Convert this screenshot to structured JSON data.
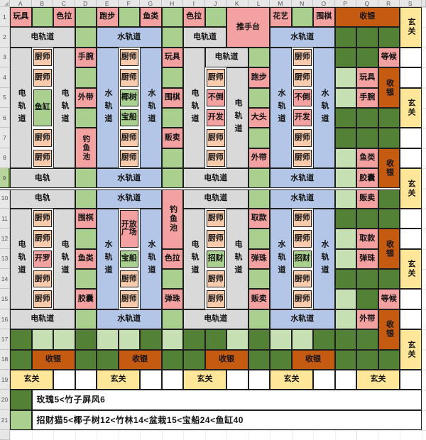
{
  "sheet": {
    "columns": [
      "A",
      "B",
      "C",
      "D",
      "E",
      "F",
      "G",
      "H",
      "I",
      "J",
      "K",
      "L",
      "M",
      "N",
      "O",
      "P",
      "Q",
      "R",
      "S"
    ],
    "rows": [
      1,
      2,
      3,
      4,
      5,
      6,
      7,
      8,
      9,
      10,
      11,
      12,
      13,
      14,
      15,
      16,
      17,
      18,
      19,
      20,
      21
    ],
    "selected_row": 9,
    "thick_divider_after_row": 9
  },
  "palette": {
    "pink": "#F4A2A1",
    "peach": "#F8CBAD",
    "green": "#A9D08E",
    "lightgreen": "#C6E0B4",
    "dark": "#538135",
    "gray": "#D9D9D9",
    "blue": "#B4C6E7",
    "orange": "#C55A11",
    "yellow": "#FFE699",
    "white": "#FFFFFF",
    "note": "#FFFFFF",
    "header_bg": "#E7E7E7",
    "selected_header_bg": "#B7D49C",
    "border": "#1F1F1F"
  },
  "notes": {
    "row20": "玫瑰5<竹子屏风6",
    "row21": "招财猫5<椰子树12<竹林14<盆栽15<宝船24<鱼缸40"
  },
  "cells": [
    {
      "a": "A1",
      "t": "玩具",
      "f": "pink"
    },
    {
      "a": "A2",
      "cs": 3,
      "t": "电轨道",
      "f": "gray"
    },
    {
      "a": "A3",
      "rs": 6,
      "t": "电轨道",
      "f": "gray",
      "o": "v"
    },
    {
      "a": "A9",
      "cs": 3,
      "t": "电轨",
      "f": "gray"
    },
    {
      "a": "A10",
      "cs": 3,
      "t": "电轨",
      "f": "gray"
    },
    {
      "a": "A11",
      "rs": 5,
      "t": "电轨道",
      "f": "gray",
      "o": "v"
    },
    {
      "a": "A16",
      "cs": 3,
      "t": "电轨道",
      "f": "gray"
    },
    {
      "a": "A17",
      "f": "dark"
    },
    {
      "a": "A18",
      "f": "dark"
    },
    {
      "a": "A19",
      "cs": 2,
      "t": "玄关",
      "f": "yellow"
    },
    {
      "a": "A20",
      "f": "dark"
    },
    {
      "a": "A21",
      "f": "green"
    },
    {
      "a": "B1",
      "f": "green"
    },
    {
      "a": "B3",
      "t": "厨师",
      "f": "peach",
      "k": "box"
    },
    {
      "a": "B4",
      "t": "厨师",
      "f": "peach",
      "k": "box"
    },
    {
      "a": "B5",
      "rs": 2,
      "t": "鱼缸",
      "f": "green",
      "k": "box"
    },
    {
      "a": "B7",
      "t": "厨师",
      "f": "peach",
      "k": "box"
    },
    {
      "a": "B8",
      "t": "厨师",
      "f": "peach",
      "k": "box"
    },
    {
      "a": "B11",
      "t": "厨师",
      "f": "peach",
      "k": "box"
    },
    {
      "a": "B12",
      "t": "厨师",
      "f": "peach",
      "k": "box"
    },
    {
      "a": "B13",
      "t": "开罗",
      "f": "pink",
      "k": "box"
    },
    {
      "a": "B14",
      "t": "厨师",
      "f": "peach",
      "k": "box"
    },
    {
      "a": "B15",
      "t": "厨师",
      "f": "peach",
      "k": "box"
    },
    {
      "a": "B17",
      "f": "lightgreen"
    },
    {
      "a": "B18",
      "cs": 2,
      "t": "收银",
      "f": "orange"
    },
    {
      "a": "B20",
      "cs": 18,
      "t": "玫瑰5<竹子屏风6",
      "f": "note"
    },
    {
      "a": "B21",
      "cs": 18,
      "t": "招财猫5<椰子树12<竹林14<盆栽15<宝船24<鱼缸40",
      "f": "note"
    },
    {
      "a": "C1",
      "t": "色拉",
      "f": "pink"
    },
    {
      "a": "C3",
      "rs": 6,
      "t": "电轨道",
      "f": "gray",
      "o": "v"
    },
    {
      "a": "C11",
      "rs": 5,
      "t": "电轨道",
      "f": "gray",
      "o": "v"
    },
    {
      "a": "C17",
      "f": "lightgreen"
    },
    {
      "a": "C19",
      "f": "white"
    },
    {
      "a": "D1",
      "f": "green"
    },
    {
      "a": "D2",
      "f": "green"
    },
    {
      "a": "D3",
      "t": "手腕",
      "f": "pink"
    },
    {
      "a": "D4",
      "f": "green"
    },
    {
      "a": "D5",
      "t": "外带",
      "f": "pink"
    },
    {
      "a": "D6",
      "f": "green"
    },
    {
      "a": "D7",
      "rs": 2,
      "t": "钓鱼池",
      "f": "pink",
      "o": "v"
    },
    {
      "a": "D9",
      "f": "green"
    },
    {
      "a": "D10",
      "f": "green"
    },
    {
      "a": "D11",
      "t": "围棋",
      "f": "pink"
    },
    {
      "a": "D12",
      "f": "green"
    },
    {
      "a": "D13",
      "t": "鱼类",
      "f": "pink"
    },
    {
      "a": "D14",
      "f": "green"
    },
    {
      "a": "D15",
      "t": "胶囊",
      "f": "pink"
    },
    {
      "a": "D16",
      "f": "green"
    },
    {
      "a": "D17",
      "f": "dark"
    },
    {
      "a": "D18",
      "f": "dark"
    },
    {
      "a": "D19",
      "f": "white"
    },
    {
      "a": "E1",
      "t": "跑步",
      "f": "pink"
    },
    {
      "a": "E2",
      "cs": 3,
      "t": "水轨道",
      "f": "blue"
    },
    {
      "a": "E3",
      "rs": 6,
      "t": "水轨道",
      "f": "blue",
      "o": "v"
    },
    {
      "a": "E9",
      "cs": 3,
      "t": "水轨道",
      "f": "blue"
    },
    {
      "a": "E10",
      "cs": 3,
      "t": "水轨道",
      "f": "blue"
    },
    {
      "a": "E11",
      "rs": 5,
      "t": "水轨道",
      "f": "blue",
      "o": "v"
    },
    {
      "a": "E16",
      "cs": 3,
      "t": "水轨道",
      "f": "blue"
    },
    {
      "a": "E17",
      "f": "lightgreen"
    },
    {
      "a": "E18",
      "f": "dark"
    },
    {
      "a": "E19",
      "cs": 2,
      "t": "玄关",
      "f": "yellow"
    },
    {
      "a": "F1",
      "f": "green"
    },
    {
      "a": "F3",
      "t": "厨师",
      "f": "peach",
      "k": "box"
    },
    {
      "a": "F4",
      "t": "厨师",
      "f": "peach",
      "k": "box"
    },
    {
      "a": "F5",
      "t": "椰树",
      "f": "green",
      "k": "box"
    },
    {
      "a": "F6",
      "t": "宝船",
      "f": "green",
      "k": "box"
    },
    {
      "a": "F7",
      "t": "厨师",
      "f": "peach",
      "k": "box"
    },
    {
      "a": "F8",
      "t": "厨师",
      "f": "peach",
      "k": "box"
    },
    {
      "a": "F11",
      "rs": 2,
      "t": "开放广场",
      "f": "pink",
      "k": "box",
      "o": "w"
    },
    {
      "a": "F13",
      "t": "宝船",
      "f": "green",
      "k": "box"
    },
    {
      "a": "F14",
      "t": "厨师",
      "f": "peach",
      "k": "box"
    },
    {
      "a": "F15",
      "t": "厨师",
      "f": "peach",
      "k": "box"
    },
    {
      "a": "F17",
      "f": "lightgreen"
    },
    {
      "a": "F18",
      "cs": 2,
      "t": "收银",
      "f": "orange"
    },
    {
      "a": "G1",
      "t": "鱼类",
      "f": "pink"
    },
    {
      "a": "G3",
      "rs": 6,
      "t": "水轨道",
      "f": "blue",
      "o": "v"
    },
    {
      "a": "G11",
      "rs": 5,
      "t": "水轨道",
      "f": "blue",
      "o": "v"
    },
    {
      "a": "G17",
      "f": "dark"
    },
    {
      "a": "G19",
      "f": "white"
    },
    {
      "a": "H1",
      "f": "green"
    },
    {
      "a": "H2",
      "f": "green"
    },
    {
      "a": "H3",
      "t": "玩具",
      "f": "pink"
    },
    {
      "a": "H4",
      "f": "green"
    },
    {
      "a": "H5",
      "t": "围棋",
      "f": "pink"
    },
    {
      "a": "H6",
      "f": "green"
    },
    {
      "a": "H7",
      "t": "贩卖",
      "f": "pink"
    },
    {
      "a": "H8",
      "f": "green"
    },
    {
      "a": "H9",
      "f": "green"
    },
    {
      "a": "H10",
      "rs": 3,
      "t": "钓鱼池",
      "f": "pink",
      "o": "v"
    },
    {
      "a": "H13",
      "t": "色拉",
      "f": "pink"
    },
    {
      "a": "H14",
      "f": "green"
    },
    {
      "a": "H15",
      "t": "弹珠",
      "f": "pink"
    },
    {
      "a": "H16",
      "f": "green"
    },
    {
      "a": "H17",
      "f": "lightgreen"
    },
    {
      "a": "H18",
      "f": "dark"
    },
    {
      "a": "H19",
      "f": "white"
    },
    {
      "a": "I1",
      "t": "色拉",
      "f": "pink"
    },
    {
      "a": "I2",
      "cs": 2,
      "t": "电轨道",
      "f": "gray"
    },
    {
      "a": "I3",
      "rs": 6,
      "t": "电轨道",
      "f": "gray",
      "o": "v"
    },
    {
      "a": "I9",
      "cs": 3,
      "t": "电轨道",
      "f": "gray"
    },
    {
      "a": "I10",
      "cs": 3,
      "t": "电轨道",
      "f": "gray"
    },
    {
      "a": "I11",
      "rs": 5,
      "t": "电轨道",
      "f": "gray",
      "o": "v"
    },
    {
      "a": "I16",
      "cs": 3,
      "t": "电轨道",
      "f": "gray"
    },
    {
      "a": "I17",
      "f": "dark"
    },
    {
      "a": "I18",
      "f": "dark"
    },
    {
      "a": "I19",
      "cs": 2,
      "t": "玄关",
      "f": "yellow"
    },
    {
      "a": "J1",
      "f": "green"
    },
    {
      "a": "J3",
      "cs": 2,
      "t": "电轨道",
      "f": "gray"
    },
    {
      "a": "J4",
      "t": "厨师",
      "f": "peach",
      "k": "box"
    },
    {
      "a": "J5",
      "t": "不倒",
      "f": "pink",
      "k": "box"
    },
    {
      "a": "J6",
      "t": "开发",
      "f": "pink",
      "k": "box"
    },
    {
      "a": "J7",
      "t": "厨师",
      "f": "peach",
      "k": "box"
    },
    {
      "a": "J8",
      "t": "厨师",
      "f": "peach",
      "k": "box"
    },
    {
      "a": "J11",
      "t": "厨师",
      "f": "peach",
      "k": "box"
    },
    {
      "a": "J12",
      "t": "厨师",
      "f": "peach",
      "k": "box"
    },
    {
      "a": "J13",
      "t": "招财",
      "f": "green",
      "k": "box"
    },
    {
      "a": "J14",
      "t": "厨师",
      "f": "peach",
      "k": "box"
    },
    {
      "a": "J15",
      "t": "厨师",
      "f": "peach",
      "k": "box"
    },
    {
      "a": "J17",
      "f": "dark"
    },
    {
      "a": "J18",
      "cs": 2,
      "t": "收银",
      "f": "orange"
    },
    {
      "a": "K1",
      "cs": 2,
      "rs": 2,
      "t": "推手台",
      "f": "pink"
    },
    {
      "a": "K4",
      "rs": 5,
      "t": "电轨道",
      "f": "gray",
      "o": "v"
    },
    {
      "a": "K11",
      "rs": 5,
      "t": "电轨道",
      "f": "gray",
      "o": "v"
    },
    {
      "a": "K17",
      "f": "lightgreen"
    },
    {
      "a": "K19",
      "f": "white"
    },
    {
      "a": "L3",
      "f": "green"
    },
    {
      "a": "L4",
      "t": "跑步",
      "f": "pink"
    },
    {
      "a": "L5",
      "f": "green"
    },
    {
      "a": "L6",
      "t": "大头",
      "f": "pink"
    },
    {
      "a": "L7",
      "f": "green"
    },
    {
      "a": "L8",
      "t": "外带",
      "f": "pink"
    },
    {
      "a": "L9",
      "f": "green"
    },
    {
      "a": "L10",
      "f": "green"
    },
    {
      "a": "L11",
      "t": "取款",
      "f": "pink"
    },
    {
      "a": "L12",
      "f": "green"
    },
    {
      "a": "L13",
      "t": "弹珠",
      "f": "pink"
    },
    {
      "a": "L14",
      "f": "green"
    },
    {
      "a": "L15",
      "t": "贩卖",
      "f": "pink"
    },
    {
      "a": "L16",
      "f": "green"
    },
    {
      "a": "L17",
      "f": "dark"
    },
    {
      "a": "L18",
      "f": "dark"
    },
    {
      "a": "L19",
      "f": "white"
    },
    {
      "a": "M1",
      "t": "花艺",
      "f": "pink"
    },
    {
      "a": "M2",
      "cs": 3,
      "t": "水轨道",
      "f": "blue"
    },
    {
      "a": "M3",
      "rs": 6,
      "t": "水轨道",
      "f": "blue",
      "o": "v"
    },
    {
      "a": "M9",
      "cs": 3,
      "t": "水轨道",
      "f": "blue"
    },
    {
      "a": "M10",
      "cs": 3,
      "t": "水轨道",
      "f": "blue"
    },
    {
      "a": "M11",
      "rs": 5,
      "t": "水轨道",
      "f": "blue",
      "o": "v"
    },
    {
      "a": "M16",
      "cs": 3,
      "t": "水轨道",
      "f": "blue"
    },
    {
      "a": "M17",
      "f": "lightgreen"
    },
    {
      "a": "M18",
      "f": "dark"
    },
    {
      "a": "M19",
      "cs": 2,
      "t": "玄关",
      "f": "yellow"
    },
    {
      "a": "N1",
      "f": "green"
    },
    {
      "a": "N3",
      "t": "厨师",
      "f": "peach",
      "k": "box"
    },
    {
      "a": "N4",
      "t": "厨师",
      "f": "peach",
      "k": "box"
    },
    {
      "a": "N5",
      "t": "不倒",
      "f": "pink",
      "k": "box"
    },
    {
      "a": "N6",
      "t": "开发",
      "f": "pink",
      "k": "box"
    },
    {
      "a": "N7",
      "t": "厨师",
      "f": "peach",
      "k": "box"
    },
    {
      "a": "N8",
      "t": "厨师",
      "f": "peach",
      "k": "box"
    },
    {
      "a": "N11",
      "t": "厨师",
      "f": "peach",
      "k": "box"
    },
    {
      "a": "N12",
      "t": "厨师",
      "f": "peach",
      "k": "box"
    },
    {
      "a": "N13",
      "t": "招财",
      "f": "green",
      "k": "box"
    },
    {
      "a": "N14",
      "t": "厨师",
      "f": "peach",
      "k": "box"
    },
    {
      "a": "N15",
      "t": "厨师",
      "f": "peach",
      "k": "box"
    },
    {
      "a": "N17",
      "f": "lightgreen"
    },
    {
      "a": "N18",
      "cs": 2,
      "t": "收银",
      "f": "orange"
    },
    {
      "a": "O1",
      "t": "围棋",
      "f": "pink"
    },
    {
      "a": "O3",
      "rs": 6,
      "t": "水轨道",
      "f": "blue",
      "o": "v"
    },
    {
      "a": "O11",
      "rs": 5,
      "t": "水轨道",
      "f": "blue",
      "o": "v"
    },
    {
      "a": "O17",
      "f": "dark"
    },
    {
      "a": "O19",
      "f": "white"
    },
    {
      "a": "P1",
      "cs": 3,
      "t": "收银",
      "f": "orange"
    },
    {
      "a": "P2",
      "f": "dark"
    },
    {
      "a": "P3",
      "f": "dark"
    },
    {
      "a": "P4",
      "f": "lightgreen"
    },
    {
      "a": "P5",
      "f": "lightgreen"
    },
    {
      "a": "P6",
      "f": "dark"
    },
    {
      "a": "P7",
      "f": "dark"
    },
    {
      "a": "P8",
      "f": "lightgreen"
    },
    {
      "a": "P9",
      "f": "lightgreen"
    },
    {
      "a": "P10",
      "f": "lightgreen"
    },
    {
      "a": "P11",
      "f": "dark"
    },
    {
      "a": "P12",
      "f": "lightgreen"
    },
    {
      "a": "P13",
      "f": "lightgreen"
    },
    {
      "a": "P14",
      "f": "dark"
    },
    {
      "a": "P15",
      "f": "lightgreen"
    },
    {
      "a": "P16",
      "f": "lightgreen"
    },
    {
      "a": "P17",
      "f": "dark"
    },
    {
      "a": "P18",
      "f": "dark"
    },
    {
      "a": "P19",
      "f": "white"
    },
    {
      "a": "Q2",
      "f": "dark"
    },
    {
      "a": "Q3",
      "f": "dark"
    },
    {
      "a": "Q4",
      "t": "玩具",
      "f": "pink"
    },
    {
      "a": "Q5",
      "t": "手腕",
      "f": "pink"
    },
    {
      "a": "Q6",
      "f": "dark"
    },
    {
      "a": "Q7",
      "f": "dark"
    },
    {
      "a": "Q8",
      "t": "鱼类",
      "f": "pink"
    },
    {
      "a": "Q9",
      "t": "胶囊",
      "f": "pink"
    },
    {
      "a": "Q10",
      "t": "贩卖",
      "f": "pink"
    },
    {
      "a": "Q11",
      "f": "dark"
    },
    {
      "a": "Q12",
      "t": "取款",
      "f": "pink"
    },
    {
      "a": "Q13",
      "t": "弹珠",
      "f": "pink"
    },
    {
      "a": "Q14",
      "f": "dark"
    },
    {
      "a": "Q15",
      "f": "dark"
    },
    {
      "a": "Q16",
      "t": "外带",
      "f": "pink"
    },
    {
      "a": "Q17",
      "f": "dark"
    },
    {
      "a": "Q18",
      "f": "dark"
    },
    {
      "a": "Q19",
      "cs": 2,
      "t": "玄关",
      "f": "yellow"
    },
    {
      "a": "R2",
      "f": "dark"
    },
    {
      "a": "R3",
      "t": "等候",
      "f": "pink"
    },
    {
      "a": "R4",
      "rs": 2,
      "t": "收银",
      "f": "orange",
      "o": "v"
    },
    {
      "a": "R6",
      "f": "dark"
    },
    {
      "a": "R7",
      "f": "dark"
    },
    {
      "a": "R8",
      "rs": 2,
      "t": "收银",
      "f": "orange",
      "o": "v"
    },
    {
      "a": "R10",
      "f": "dark"
    },
    {
      "a": "R11",
      "f": "dark"
    },
    {
      "a": "R12",
      "rs": 2,
      "t": "收银",
      "f": "orange",
      "o": "v"
    },
    {
      "a": "R14",
      "f": "dark"
    },
    {
      "a": "R15",
      "t": "等候",
      "f": "pink"
    },
    {
      "a": "R16",
      "rs": 2,
      "t": "收银",
      "f": "orange",
      "o": "v"
    },
    {
      "a": "R18",
      "f": "dark"
    },
    {
      "a": "S1",
      "rs": 2,
      "t": "玄关",
      "f": "yellow",
      "o": "v"
    },
    {
      "a": "S3",
      "f": "white"
    },
    {
      "a": "S4",
      "f": "white"
    },
    {
      "a": "S5",
      "rs": 2,
      "t": "玄关",
      "f": "yellow",
      "o": "v"
    },
    {
      "a": "S7",
      "f": "white"
    },
    {
      "a": "S8",
      "f": "white"
    },
    {
      "a": "S9",
      "rs": 2,
      "t": "玄关",
      "f": "yellow",
      "o": "v"
    },
    {
      "a": "S11",
      "f": "white"
    },
    {
      "a": "S12",
      "f": "white"
    },
    {
      "a": "S13",
      "rs": 2,
      "t": "玄关",
      "f": "yellow",
      "o": "v"
    },
    {
      "a": "S15",
      "f": "white"
    },
    {
      "a": "S16",
      "f": "white"
    },
    {
      "a": "S17",
      "rs": 2,
      "t": "玄关",
      "f": "yellow",
      "o": "v"
    },
    {
      "a": "S19",
      "f": "white"
    }
  ]
}
